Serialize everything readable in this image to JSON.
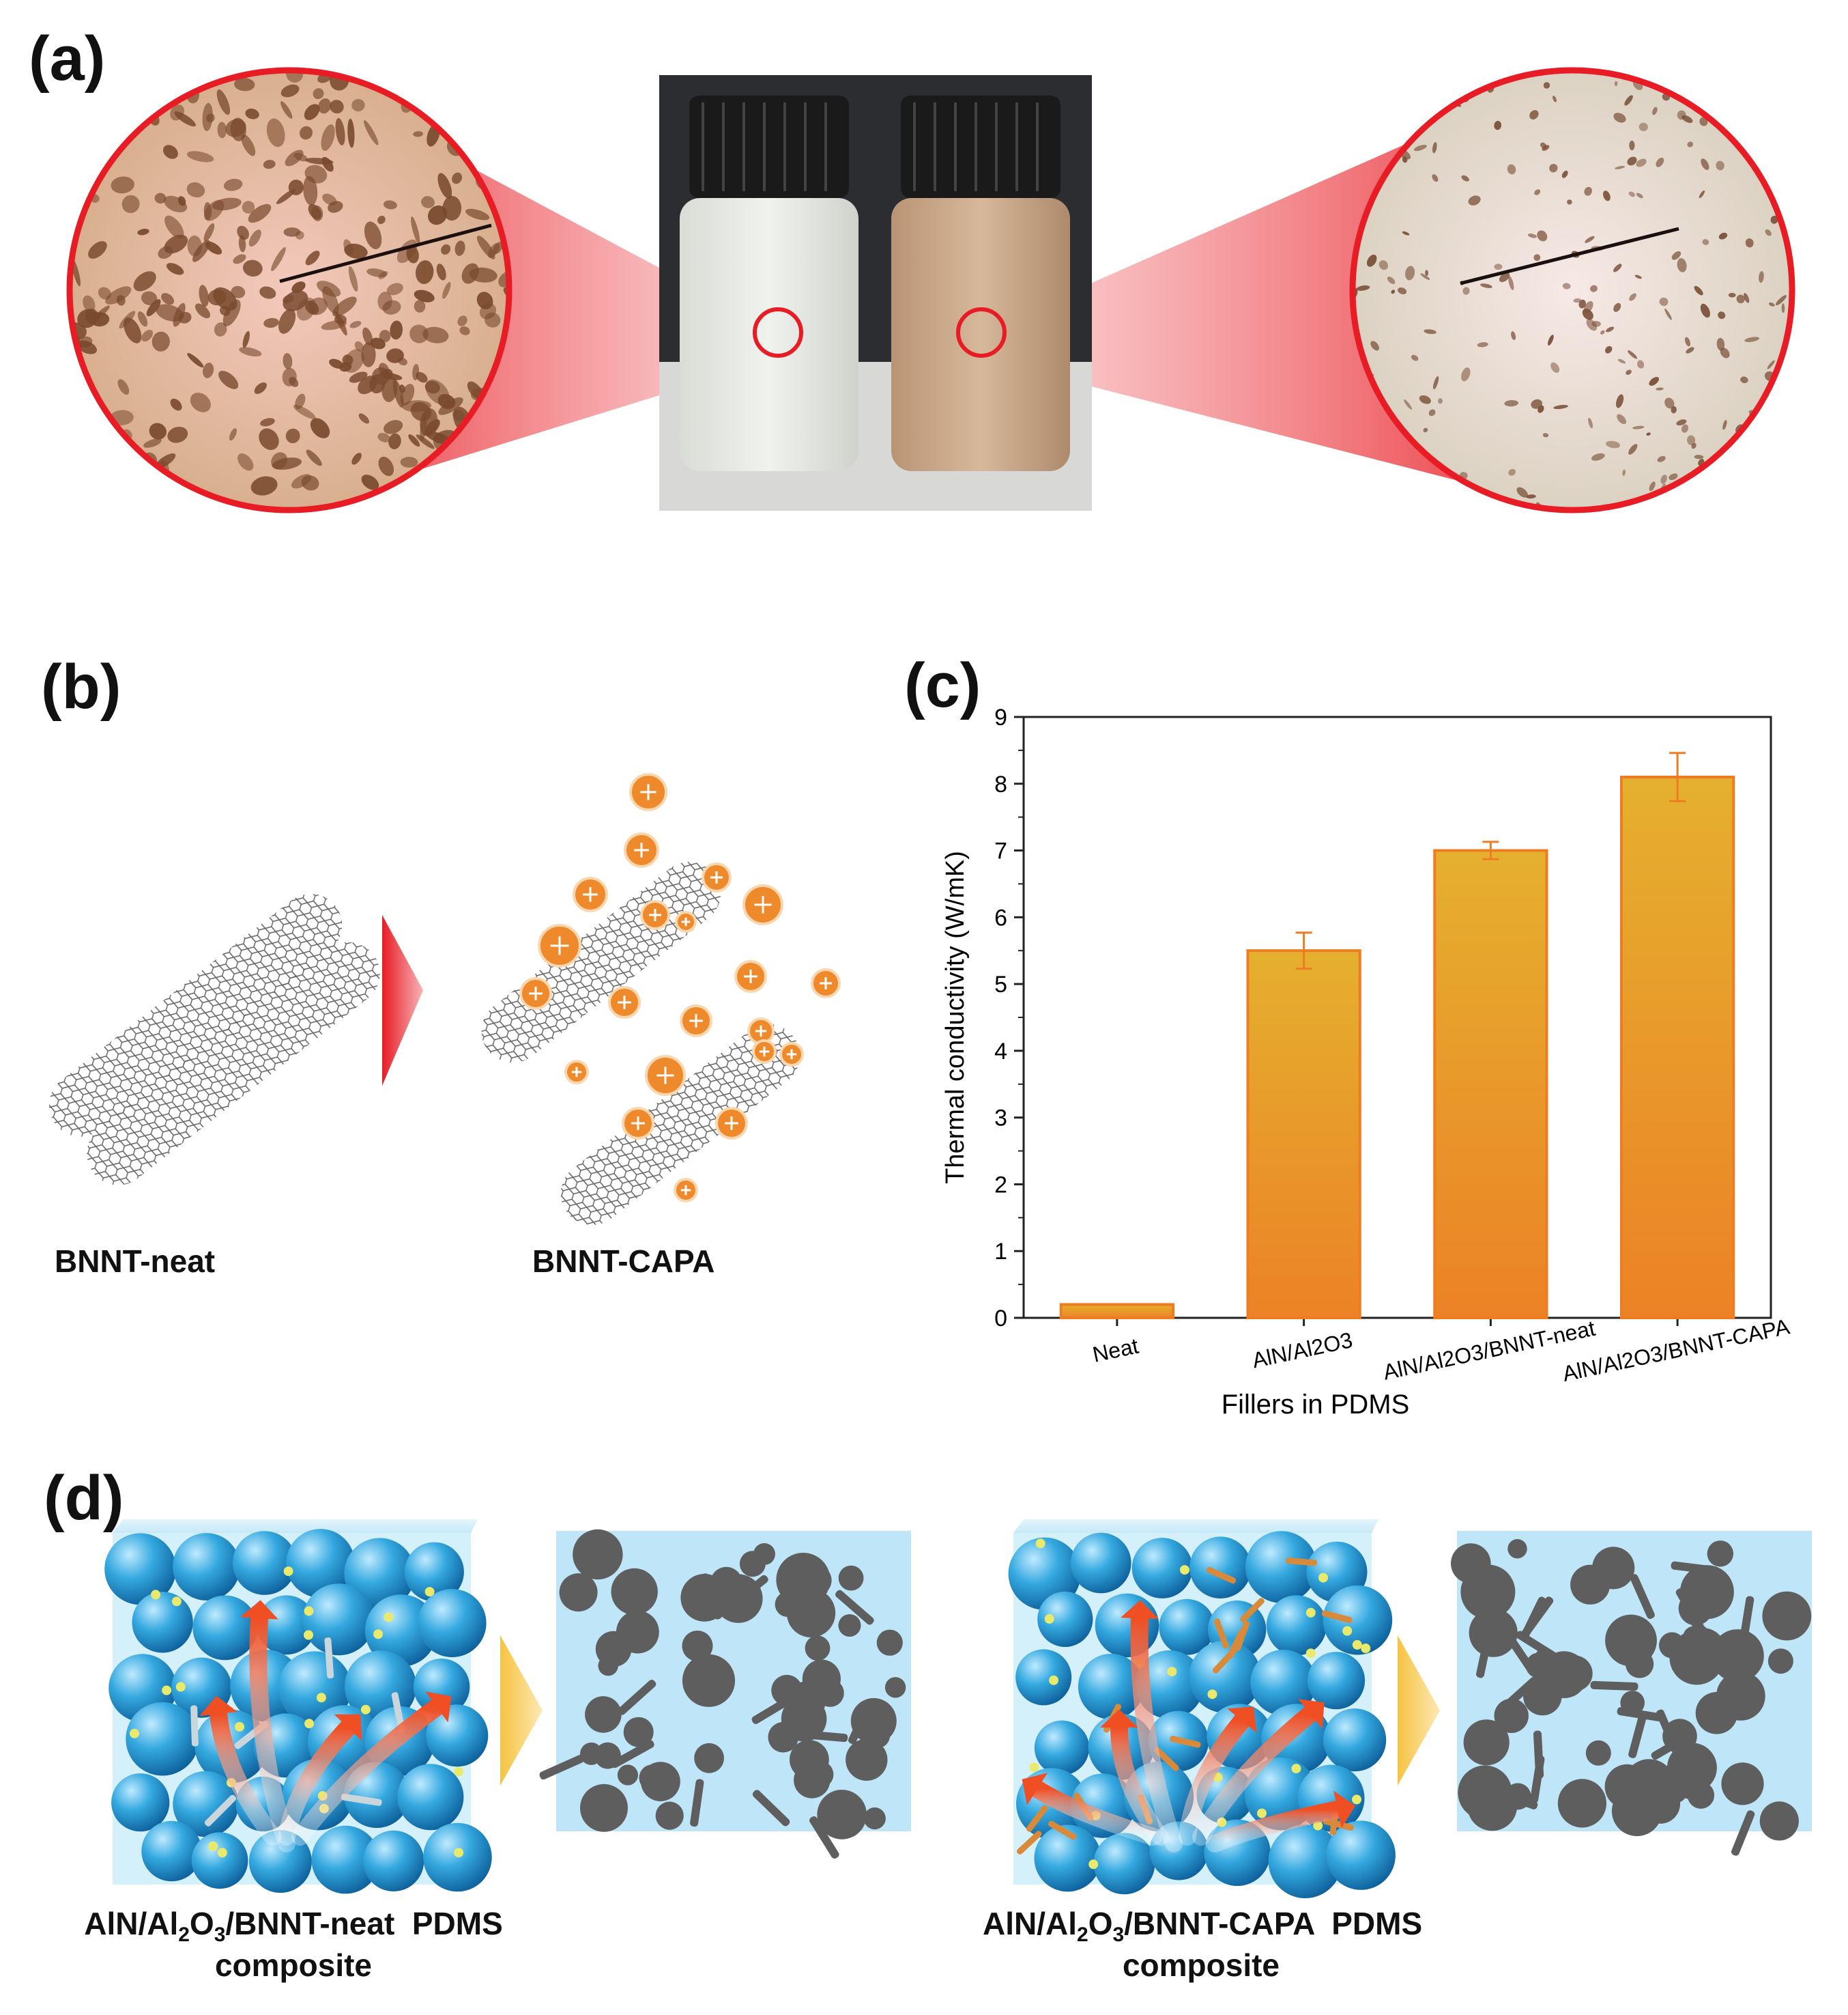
{
  "panels": {
    "a": {
      "label": "(a)"
    },
    "b": {
      "label": "(b)",
      "left_caption": "BNNT-neat",
      "right_caption": "BNNT-CAPA"
    },
    "c": {
      "label": "(c)"
    },
    "d": {
      "label": "(d)",
      "left_caption_line1_pre": "AlN/Al",
      "left_caption_line1_post": "/BNNT-neat  PDMS",
      "right_caption_line1_pre": "AlN/Al",
      "right_caption_line1_post": "/BNNT-CAPA  PDMS",
      "sub2": "2",
      "sub3": "3",
      "o": "O",
      "caption_line2": "composite"
    }
  },
  "colors": {
    "red": "#e81c24",
    "orange": "#ee8a2b",
    "gold": "#e6b02c",
    "blue": "#3aa7d8",
    "gray": "#5e5e5e",
    "paleblue": "#bfe4f5"
  },
  "chart_data": {
    "type": "bar",
    "title": "",
    "xlabel": "Fillers in PDMS",
    "ylabel": "Thermal conductivity (W/mK)",
    "categories": [
      "Neat",
      "AlN/Al2O3",
      "AlN/Al2O3/BNNT-neat",
      "AlN/Al2O3/BNNT-CAPA"
    ],
    "values": [
      0.2,
      5.5,
      7.0,
      8.1
    ],
    "errors": [
      0.02,
      0.27,
      0.13,
      0.36
    ],
    "ylim": [
      0,
      9
    ],
    "yticks": [
      "0",
      "1",
      "2",
      "3",
      "4",
      "5",
      "6",
      "7",
      "8",
      "9"
    ],
    "grid": false
  }
}
